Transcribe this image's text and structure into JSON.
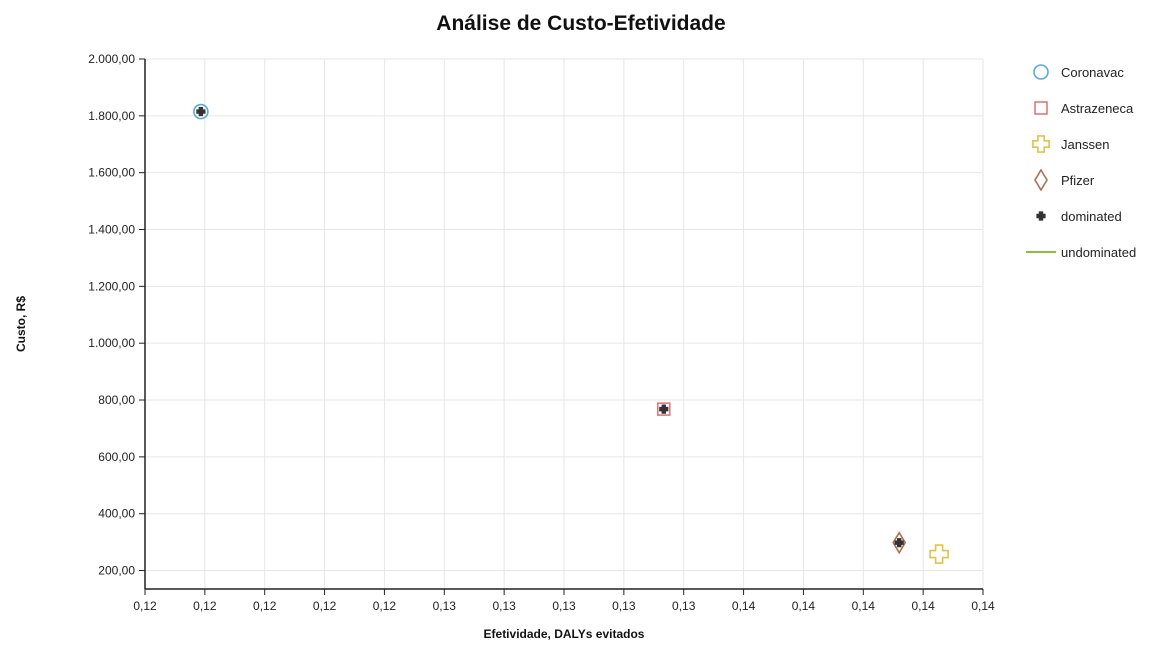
{
  "chart_data": {
    "type": "scatter",
    "title": "Análise de Custo-Efetividade",
    "xlabel": "Efetividade, DALYs evitados",
    "ylabel": "Custo, R$",
    "x_tick_labels": [
      "0,12",
      "0,12",
      "0,12",
      "0,12",
      "0,12",
      "0,13",
      "0,13",
      "0,13",
      "0,13",
      "0,13",
      "0,14",
      "0,14",
      "0,14",
      "0,14",
      "0,14"
    ],
    "y_tick_labels": [
      "200,00",
      "400,00",
      "600,00",
      "800,00",
      "1.000,00",
      "1.200,00",
      "1.400,00",
      "1.600,00",
      "1.800,00",
      "2.000,00"
    ],
    "xlim": [
      0.1175,
      0.1385
    ],
    "ylim": [
      135,
      2000
    ],
    "y_ticks": [
      200,
      400,
      600,
      800,
      1000,
      1200,
      1400,
      1600,
      1800,
      2000
    ],
    "grid": true,
    "legend_position": "right",
    "series": [
      {
        "name": "Coronavac",
        "marker": "circle",
        "color": "#5aa9d6",
        "points": [
          {
            "x": 0.1189,
            "y": 1815
          }
        ]
      },
      {
        "name": "Astrazeneca",
        "marker": "square",
        "color": "#e07a7a",
        "points": [
          {
            "x": 0.1305,
            "y": 768
          }
        ]
      },
      {
        "name": "Janssen",
        "marker": "cross",
        "color": "#e0c24a",
        "points": [
          {
            "x": 0.1374,
            "y": 258
          }
        ]
      },
      {
        "name": "Pfizer",
        "marker": "diamond",
        "color": "#b07050",
        "points": [
          {
            "x": 0.1364,
            "y": 298
          }
        ]
      },
      {
        "name": "dominated",
        "marker": "dot",
        "color": "#333333",
        "points": [
          {
            "x": 0.1189,
            "y": 1815
          },
          {
            "x": 0.1305,
            "y": 768
          },
          {
            "x": 0.1364,
            "y": 298
          }
        ]
      },
      {
        "name": "undominated",
        "marker": "line",
        "color": "#8cbf3f",
        "points": []
      }
    ]
  }
}
